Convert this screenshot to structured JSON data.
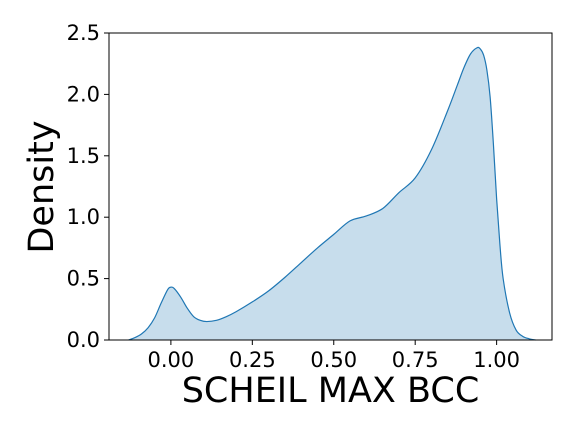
{
  "chart_data": {
    "type": "area",
    "title": "",
    "xlabel": "SCHEIL MAX BCC",
    "ylabel": "Density",
    "xlim": [
      -0.19,
      1.17
    ],
    "ylim": [
      0,
      2.5
    ],
    "grid": false,
    "x_ticks": [
      "0.00",
      "0.25",
      "0.50",
      "0.75",
      "1.00"
    ],
    "y_ticks": [
      "0.0",
      "0.5",
      "1.0",
      "1.5",
      "2.0",
      "2.5"
    ],
    "colors": {
      "line": "#1f77b4",
      "fill": "#1f77b4"
    },
    "series": [
      {
        "x": [
          -0.13,
          -0.11,
          -0.09,
          -0.07,
          -0.05,
          -0.03,
          -0.01,
          0.0,
          0.01,
          0.03,
          0.05,
          0.07,
          0.09,
          0.11,
          0.14,
          0.17,
          0.2,
          0.25,
          0.3,
          0.35,
          0.4,
          0.45,
          0.5,
          0.55,
          0.6,
          0.65,
          0.7,
          0.75,
          0.8,
          0.85,
          0.88,
          0.9,
          0.92,
          0.94,
          0.95,
          0.96,
          0.97,
          0.98,
          0.99,
          1.0,
          1.01,
          1.02,
          1.04,
          1.06,
          1.08,
          1.1,
          1.12
        ],
        "y": [
          0.0,
          0.02,
          0.05,
          0.1,
          0.18,
          0.3,
          0.41,
          0.43,
          0.42,
          0.35,
          0.26,
          0.19,
          0.16,
          0.15,
          0.16,
          0.19,
          0.23,
          0.31,
          0.4,
          0.51,
          0.63,
          0.75,
          0.86,
          0.97,
          1.01,
          1.07,
          1.2,
          1.32,
          1.55,
          1.87,
          2.08,
          2.22,
          2.33,
          2.38,
          2.37,
          2.32,
          2.2,
          1.98,
          1.6,
          1.15,
          0.78,
          0.5,
          0.22,
          0.08,
          0.03,
          0.01,
          0.0
        ]
      }
    ]
  }
}
